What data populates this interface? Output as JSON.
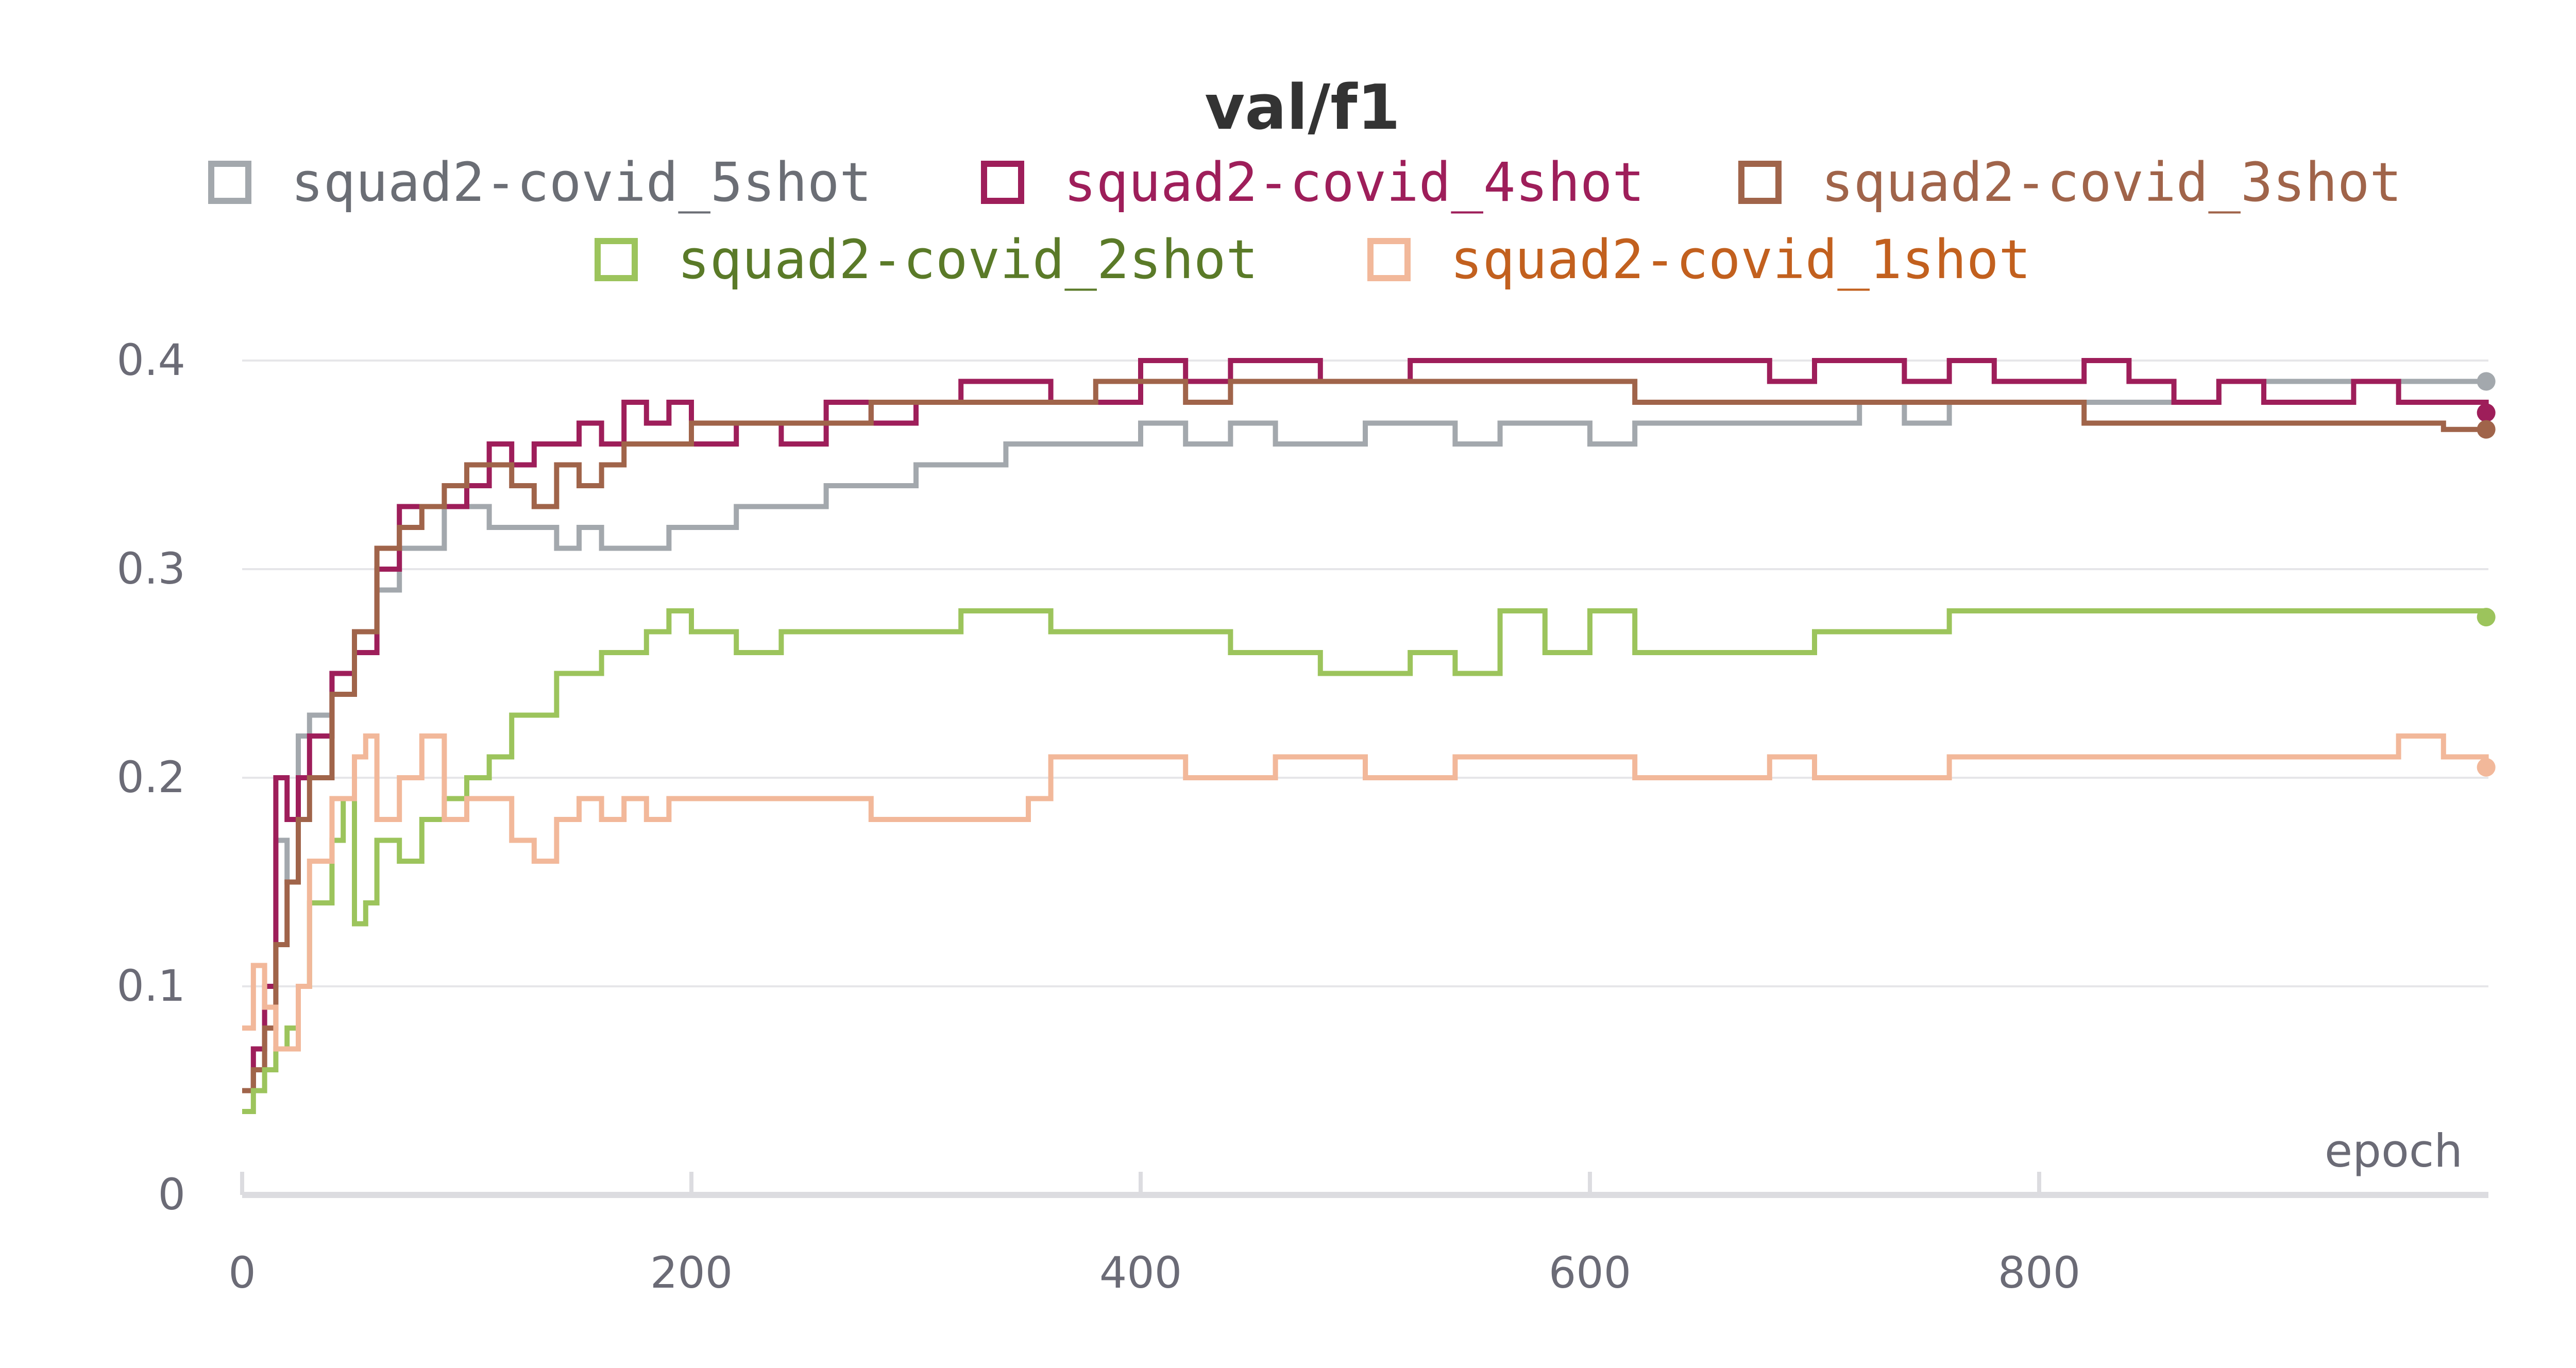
{
  "chart_data": {
    "type": "line",
    "title": "val/f1",
    "xlabel": "epoch",
    "ylabel": "",
    "xlim": [
      0,
      1000
    ],
    "ylim": [
      0,
      0.4
    ],
    "x_ticks": [
      0,
      200,
      400,
      600,
      800
    ],
    "y_ticks": [
      0,
      0.1,
      0.2,
      0.3,
      0.4
    ],
    "y_tick_labels": [
      "0",
      "0.1",
      "0.2",
      "0.3",
      "0.4"
    ],
    "x_tick_labels": [
      "0",
      "200",
      "400",
      "600",
      "800"
    ],
    "grid": true,
    "legend": "top",
    "series": [
      {
        "name": "squad2-covid_5shot",
        "color": "#a3a8ad",
        "text_color": "#6b6e75",
        "x": [
          0,
          5,
          10,
          15,
          20,
          25,
          30,
          40,
          50,
          60,
          70,
          80,
          90,
          100,
          110,
          120,
          130,
          140,
          150,
          160,
          170,
          180,
          190,
          200,
          220,
          240,
          260,
          280,
          300,
          320,
          340,
          360,
          380,
          400,
          420,
          440,
          460,
          480,
          500,
          520,
          540,
          560,
          580,
          600,
          620,
          640,
          660,
          680,
          700,
          720,
          740,
          760,
          780,
          800,
          820,
          840,
          860,
          880,
          900,
          920,
          940,
          960,
          980,
          999
        ],
        "values": [
          0.05,
          0.06,
          0.09,
          0.17,
          0.15,
          0.22,
          0.23,
          0.25,
          0.27,
          0.29,
          0.31,
          0.31,
          0.33,
          0.33,
          0.32,
          0.32,
          0.32,
          0.31,
          0.32,
          0.31,
          0.31,
          0.31,
          0.32,
          0.32,
          0.33,
          0.33,
          0.34,
          0.34,
          0.35,
          0.35,
          0.36,
          0.36,
          0.36,
          0.37,
          0.36,
          0.37,
          0.36,
          0.36,
          0.37,
          0.37,
          0.36,
          0.37,
          0.37,
          0.36,
          0.37,
          0.37,
          0.37,
          0.37,
          0.37,
          0.38,
          0.37,
          0.38,
          0.38,
          0.38,
          0.38,
          0.38,
          0.38,
          0.39,
          0.39,
          0.39,
          0.39,
          0.39,
          0.39,
          0.39
        ]
      },
      {
        "name": "squad2-covid_4shot",
        "color": "#9e1e5a",
        "text_color": "#9e1e5a",
        "x": [
          0,
          5,
          10,
          15,
          20,
          25,
          30,
          40,
          50,
          60,
          70,
          80,
          90,
          100,
          110,
          120,
          130,
          140,
          150,
          160,
          170,
          180,
          190,
          200,
          220,
          240,
          260,
          280,
          300,
          320,
          340,
          360,
          380,
          400,
          420,
          440,
          460,
          480,
          500,
          520,
          540,
          560,
          580,
          600,
          620,
          640,
          660,
          680,
          700,
          720,
          740,
          760,
          780,
          800,
          820,
          840,
          860,
          880,
          900,
          920,
          940,
          960,
          980,
          999
        ],
        "values": [
          0.05,
          0.07,
          0.1,
          0.2,
          0.18,
          0.2,
          0.22,
          0.25,
          0.26,
          0.3,
          0.33,
          0.33,
          0.33,
          0.34,
          0.36,
          0.35,
          0.36,
          0.36,
          0.37,
          0.36,
          0.38,
          0.37,
          0.38,
          0.36,
          0.37,
          0.36,
          0.38,
          0.37,
          0.38,
          0.39,
          0.39,
          0.38,
          0.38,
          0.4,
          0.39,
          0.4,
          0.4,
          0.39,
          0.39,
          0.4,
          0.4,
          0.4,
          0.4,
          0.4,
          0.4,
          0.4,
          0.4,
          0.39,
          0.4,
          0.4,
          0.39,
          0.4,
          0.39,
          0.39,
          0.4,
          0.39,
          0.38,
          0.39,
          0.38,
          0.38,
          0.39,
          0.38,
          0.38,
          0.375
        ]
      },
      {
        "name": "squad2-covid_3shot",
        "color": "#a0644a",
        "text_color": "#a0644a",
        "x": [
          0,
          5,
          10,
          15,
          20,
          25,
          30,
          40,
          50,
          60,
          70,
          80,
          90,
          100,
          110,
          120,
          130,
          140,
          150,
          160,
          170,
          180,
          190,
          200,
          220,
          240,
          260,
          280,
          300,
          320,
          340,
          360,
          380,
          400,
          420,
          440,
          460,
          480,
          500,
          520,
          540,
          560,
          580,
          600,
          620,
          640,
          660,
          680,
          700,
          720,
          740,
          760,
          780,
          800,
          820,
          840,
          860,
          880,
          900,
          920,
          940,
          960,
          980,
          999
        ],
        "values": [
          0.05,
          0.06,
          0.08,
          0.12,
          0.15,
          0.18,
          0.2,
          0.24,
          0.27,
          0.31,
          0.32,
          0.33,
          0.34,
          0.35,
          0.35,
          0.34,
          0.33,
          0.35,
          0.34,
          0.35,
          0.36,
          0.36,
          0.36,
          0.37,
          0.37,
          0.37,
          0.37,
          0.38,
          0.38,
          0.38,
          0.38,
          0.38,
          0.39,
          0.39,
          0.38,
          0.39,
          0.39,
          0.39,
          0.39,
          0.39,
          0.39,
          0.39,
          0.39,
          0.39,
          0.38,
          0.38,
          0.38,
          0.38,
          0.38,
          0.38,
          0.38,
          0.38,
          0.38,
          0.38,
          0.37,
          0.37,
          0.37,
          0.37,
          0.37,
          0.37,
          0.37,
          0.37,
          0.367,
          0.367
        ]
      },
      {
        "name": "squad2-covid_2shot",
        "color": "#9cc45c",
        "text_color": "#5a7a28",
        "x": [
          0,
          5,
          10,
          15,
          20,
          25,
          30,
          40,
          45,
          50,
          55,
          60,
          70,
          80,
          90,
          100,
          110,
          120,
          130,
          140,
          150,
          160,
          170,
          180,
          190,
          200,
          220,
          240,
          260,
          280,
          300,
          320,
          340,
          360,
          380,
          400,
          420,
          440,
          460,
          480,
          500,
          520,
          540,
          560,
          580,
          600,
          620,
          640,
          660,
          680,
          700,
          720,
          740,
          760,
          780,
          800,
          820,
          840,
          860,
          880,
          900,
          920,
          940,
          960,
          980,
          999
        ],
        "values": [
          0.04,
          0.05,
          0.06,
          0.07,
          0.08,
          0.1,
          0.14,
          0.17,
          0.19,
          0.13,
          0.14,
          0.17,
          0.16,
          0.18,
          0.19,
          0.2,
          0.21,
          0.23,
          0.23,
          0.25,
          0.25,
          0.26,
          0.26,
          0.27,
          0.28,
          0.27,
          0.26,
          0.27,
          0.27,
          0.27,
          0.27,
          0.28,
          0.28,
          0.27,
          0.27,
          0.27,
          0.27,
          0.26,
          0.26,
          0.25,
          0.25,
          0.26,
          0.25,
          0.28,
          0.26,
          0.28,
          0.26,
          0.26,
          0.26,
          0.26,
          0.27,
          0.27,
          0.27,
          0.28,
          0.28,
          0.28,
          0.28,
          0.28,
          0.28,
          0.28,
          0.28,
          0.28,
          0.28,
          0.28,
          0.28,
          0.277
        ]
      },
      {
        "name": "squad2-covid_1shot",
        "color": "#f2b89a",
        "text_color": "#c2601e",
        "x": [
          0,
          5,
          10,
          15,
          20,
          25,
          30,
          40,
          50,
          55,
          60,
          70,
          80,
          90,
          100,
          110,
          120,
          130,
          140,
          150,
          160,
          170,
          180,
          190,
          200,
          220,
          240,
          260,
          280,
          300,
          320,
          340,
          350,
          360,
          380,
          400,
          420,
          440,
          460,
          480,
          500,
          520,
          540,
          560,
          580,
          600,
          620,
          640,
          660,
          680,
          700,
          720,
          740,
          760,
          780,
          800,
          820,
          840,
          860,
          880,
          900,
          920,
          940,
          960,
          980,
          999
        ],
        "values": [
          0.08,
          0.11,
          0.09,
          0.07,
          0.07,
          0.1,
          0.16,
          0.19,
          0.21,
          0.22,
          0.18,
          0.2,
          0.22,
          0.18,
          0.19,
          0.19,
          0.17,
          0.16,
          0.18,
          0.19,
          0.18,
          0.19,
          0.18,
          0.19,
          0.19,
          0.19,
          0.19,
          0.19,
          0.18,
          0.18,
          0.18,
          0.18,
          0.19,
          0.21,
          0.21,
          0.21,
          0.2,
          0.2,
          0.21,
          0.21,
          0.2,
          0.2,
          0.21,
          0.21,
          0.21,
          0.21,
          0.2,
          0.2,
          0.2,
          0.21,
          0.2,
          0.2,
          0.2,
          0.21,
          0.21,
          0.21,
          0.21,
          0.21,
          0.21,
          0.21,
          0.21,
          0.21,
          0.21,
          0.22,
          0.21,
          0.205
        ]
      }
    ]
  }
}
